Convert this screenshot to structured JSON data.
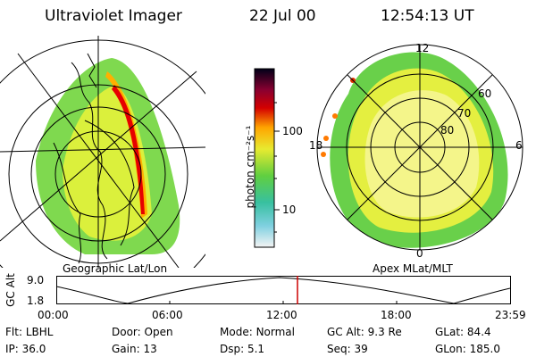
{
  "header": {
    "title": "Ultraviolet Imager",
    "date": "22 Jul 00",
    "time": "12:54:13 UT"
  },
  "colorbar": {
    "unit_label": "photon cm⁻²s⁻¹",
    "ticks": [
      "100",
      "10"
    ]
  },
  "left_panel": {
    "label": "Geographic Lat/Lon"
  },
  "right_panel": {
    "label": "Apex MLat/MLT",
    "mlt_labels": [
      "12",
      "18",
      "6",
      "0"
    ],
    "lat_labels": [
      "60",
      "70",
      "80"
    ]
  },
  "timeline": {
    "axis_label": "GC Alt",
    "y_ticks": [
      "9.0",
      "1.8"
    ],
    "x_ticks": [
      "00:00",
      "06:00",
      "12:00",
      "18:00",
      "23:59"
    ],
    "marker_time": "12:54"
  },
  "status": {
    "flt_label": "Flt:",
    "flt_value": "LBHL",
    "ip_label": "IP:",
    "ip_value": "36.0",
    "door_label": "Door:",
    "door_value": "Open",
    "gain_label": "Gain:",
    "gain_value": "13",
    "mode_label": "Mode:",
    "mode_value": "Normal",
    "dsp_label": "Dsp:",
    "dsp_value": "5.1",
    "gcalt_label": "GC Alt:",
    "gcalt_value": "9.3 Re",
    "seq_label": "Seq:",
    "seq_value": "39",
    "glat_label": "GLat:",
    "glat_value": "84.4",
    "glon_label": "GLon:",
    "glon_value": "185.0"
  },
  "colors": {
    "background": "#ffffff",
    "marker": "#cc0000"
  }
}
